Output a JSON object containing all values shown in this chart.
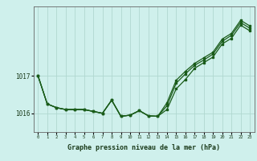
{
  "title": "Graphe pression niveau de la mer (hPa)",
  "bg_color": "#cff0ec",
  "line_color": "#1a5c1a",
  "grid_color": "#b0d8d0",
  "x_values": [
    0,
    1,
    2,
    3,
    4,
    5,
    6,
    7,
    8,
    9,
    10,
    11,
    12,
    13,
    14,
    15,
    16,
    17,
    18,
    19,
    20,
    21,
    22,
    23
  ],
  "series1": [
    1017.0,
    1016.25,
    1016.15,
    1016.1,
    1016.1,
    1016.1,
    1016.05,
    1016.0,
    1016.35,
    1015.92,
    1015.95,
    1016.07,
    1015.93,
    1015.92,
    1016.1,
    1016.65,
    1016.9,
    1017.2,
    1017.35,
    1017.5,
    1017.85,
    1018.0,
    1018.35,
    1018.2
  ],
  "series2": [
    1017.0,
    1016.25,
    1016.15,
    1016.1,
    1016.1,
    1016.1,
    1016.05,
    1016.0,
    1016.35,
    1015.92,
    1015.95,
    1016.07,
    1015.93,
    1015.92,
    1016.2,
    1016.8,
    1017.05,
    1017.28,
    1017.42,
    1017.58,
    1017.92,
    1018.08,
    1018.42,
    1018.27
  ],
  "series3": [
    1017.0,
    1016.25,
    1016.15,
    1016.1,
    1016.1,
    1016.1,
    1016.05,
    1016.0,
    1016.35,
    1015.92,
    1015.95,
    1016.07,
    1015.93,
    1015.92,
    1016.28,
    1016.88,
    1017.12,
    1017.33,
    1017.48,
    1017.63,
    1017.98,
    1018.13,
    1018.48,
    1018.33
  ],
  "yticks": [
    1016,
    1017
  ],
  "ylim": [
    1015.5,
    1018.85
  ],
  "xlim": [
    -0.5,
    23.5
  ]
}
